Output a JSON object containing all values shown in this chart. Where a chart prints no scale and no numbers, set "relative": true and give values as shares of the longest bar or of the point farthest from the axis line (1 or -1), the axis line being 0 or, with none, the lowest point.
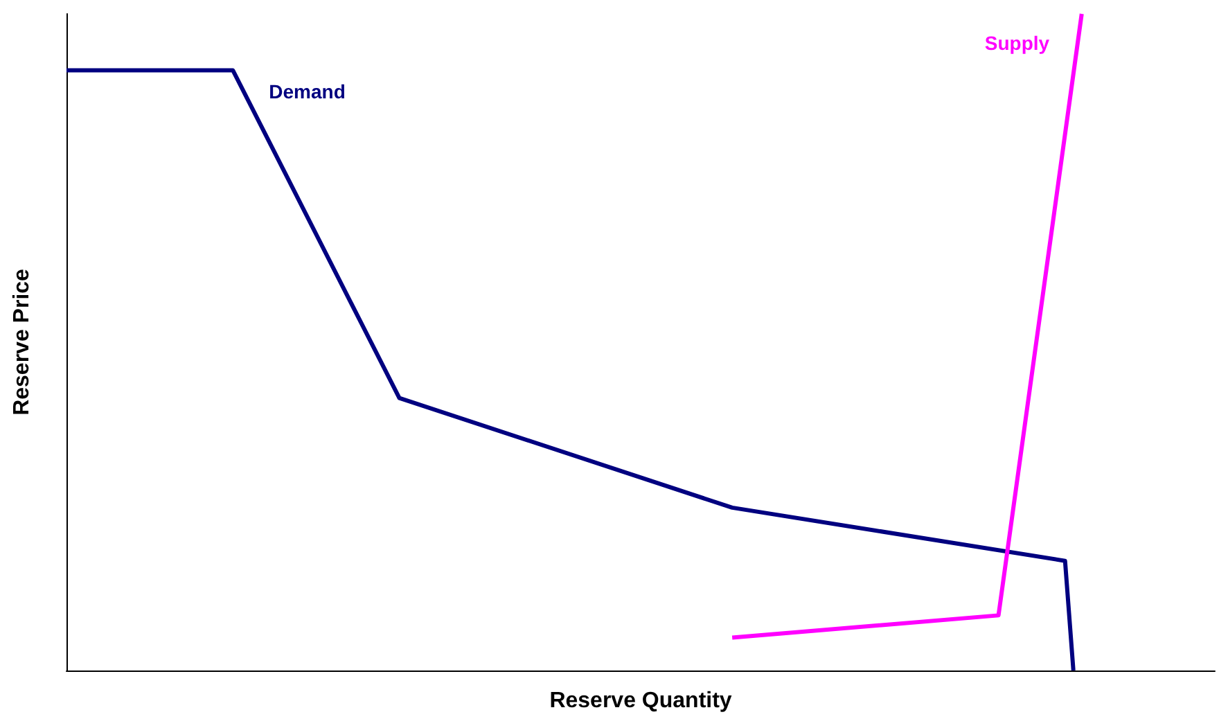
{
  "chart_data": {
    "type": "line",
    "relative": true,
    "xlabel": "Reserve Quantity",
    "ylabel": "Reserve Price",
    "grid": false,
    "legend": false,
    "marker": "none",
    "line_style": "solid",
    "categories": [
      null,
      null,
      null,
      null,
      null,
      null,
      null,
      null,
      null,
      null,
      null,
      null,
      null,
      null,
      null,
      null,
      null,
      null,
      null,
      null,
      null,
      null,
      null,
      null,
      null,
      null,
      null,
      null,
      null,
      null,
      null,
      null,
      null,
      null,
      null,
      null,
      null,
      null,
      null,
      null,
      null,
      null,
      null,
      null,
      null,
      null,
      null,
      null,
      null,
      null,
      null,
      null,
      null,
      null,
      null,
      null,
      null,
      null,
      null,
      null,
      null,
      null,
      null,
      null,
      null,
      null,
      null,
      null,
      null,
      null,
      null,
      null,
      null,
      null,
      null,
      null,
      null,
      null,
      null,
      null,
      null,
      null,
      null,
      null,
      null,
      null,
      null,
      null,
      null,
      null,
      null,
      null,
      null,
      null,
      null,
      null,
      null,
      null,
      null,
      null,
      null,
      null,
      null,
      null,
      null,
      null,
      null,
      null,
      null,
      null,
      null,
      null,
      null,
      null,
      null,
      null,
      null,
      null,
      null,
      null,
      null,
      null,
      null,
      null,
      null,
      null,
      null,
      null,
      null,
      null,
      null,
      null,
      null,
      null,
      null,
      null,
      null,
      null,
      null
    ],
    "series": [
      {
        "name": "Demand",
        "color": "#000080",
        "values": [
          0.914,
          null,
          null,
          null,
          null,
          null,
          null,
          null,
          null,
          null,
          null,
          null,
          null,
          null,
          null,
          null,
          null,
          null,
          null,
          null,
          0.914,
          null,
          null,
          null,
          null,
          null,
          null,
          null,
          null,
          null,
          null,
          null,
          null,
          null,
          null,
          null,
          null,
          null,
          null,
          null,
          0.415,
          null,
          null,
          null,
          null,
          null,
          null,
          null,
          null,
          null,
          null,
          null,
          null,
          null,
          null,
          null,
          null,
          null,
          null,
          null,
          null,
          null,
          null,
          null,
          null,
          null,
          null,
          null,
          null,
          null,
          null,
          null,
          null,
          null,
          null,
          null,
          null,
          null,
          null,
          null,
          0.248,
          null,
          null,
          null,
          null,
          null,
          null,
          null,
          null,
          null,
          null,
          null,
          null,
          null,
          null,
          null,
          null,
          null,
          null,
          null,
          null,
          null,
          null,
          null,
          null,
          null,
          null,
          null,
          null,
          null,
          null,
          null,
          null,
          null,
          null,
          null,
          null,
          null,
          null,
          null,
          0.167,
          0,
          null,
          null,
          null,
          null,
          null,
          null,
          null,
          null,
          null,
          null,
          null,
          null,
          null,
          null,
          null,
          null,
          null
        ]
      },
      {
        "name": "Supply",
        "color": "#ff00ff",
        "values": [
          null,
          null,
          null,
          null,
          null,
          null,
          null,
          null,
          null,
          null,
          null,
          null,
          null,
          null,
          null,
          null,
          null,
          null,
          null,
          null,
          null,
          null,
          null,
          null,
          null,
          null,
          null,
          null,
          null,
          null,
          null,
          null,
          null,
          null,
          null,
          null,
          null,
          null,
          null,
          null,
          null,
          null,
          null,
          null,
          null,
          null,
          null,
          null,
          null,
          null,
          null,
          null,
          null,
          null,
          null,
          null,
          null,
          null,
          null,
          null,
          null,
          null,
          null,
          null,
          null,
          null,
          null,
          null,
          null,
          null,
          null,
          null,
          null,
          null,
          null,
          null,
          null,
          null,
          null,
          null,
          0.05,
          null,
          null,
          null,
          null,
          null,
          null,
          null,
          null,
          null,
          null,
          null,
          null,
          null,
          null,
          null,
          null,
          null,
          null,
          null,
          null,
          null,
          null,
          null,
          null,
          null,
          null,
          null,
          null,
          null,
          null,
          null,
          0.084,
          null,
          null,
          null,
          null,
          null,
          null,
          null,
          null,
          null,
          1,
          null,
          null,
          null,
          null,
          null,
          null,
          null,
          null,
          null,
          null,
          null,
          null,
          null,
          null,
          null,
          null
        ]
      }
    ]
  }
}
